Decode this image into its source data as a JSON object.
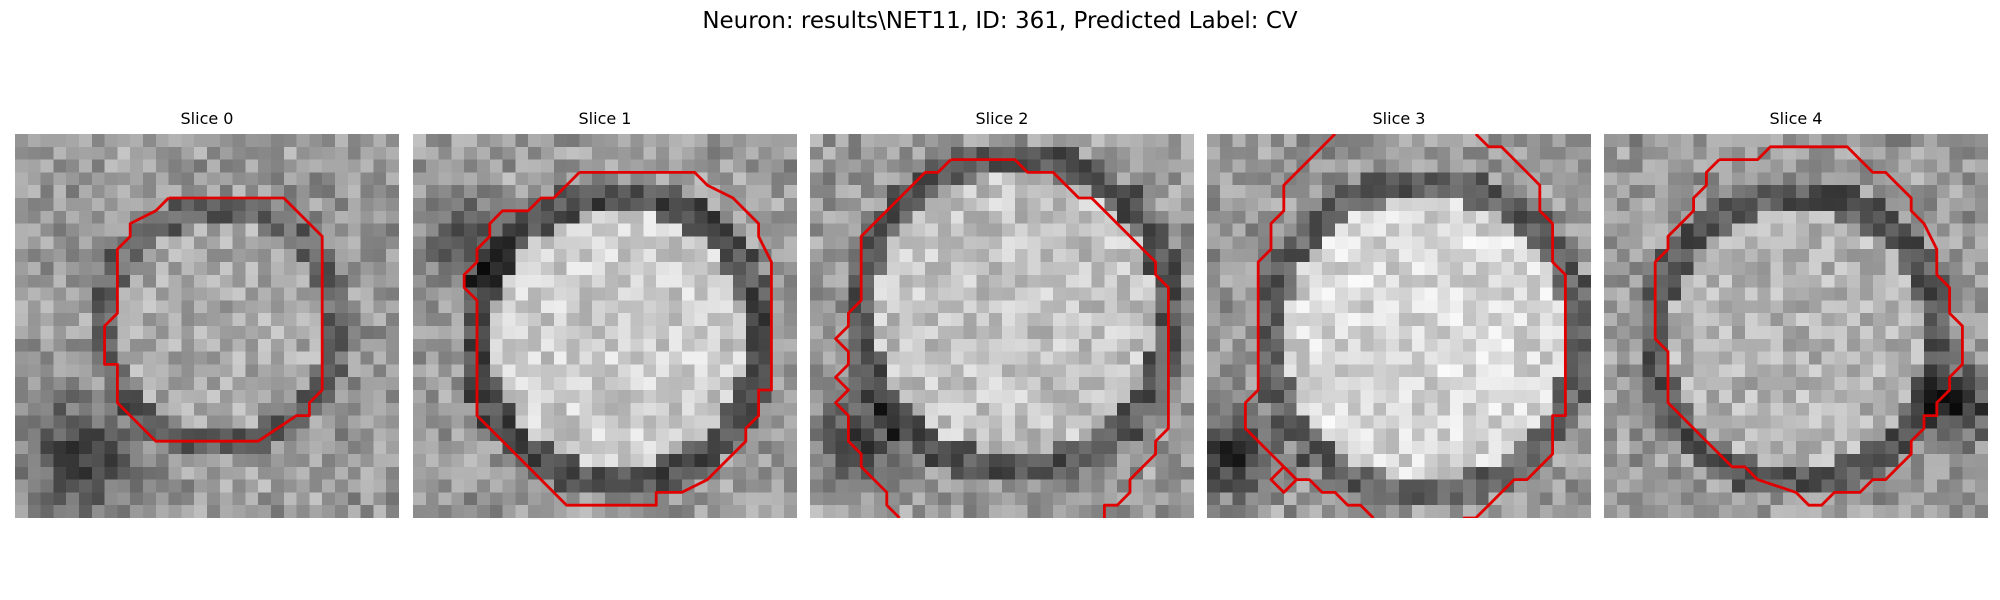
{
  "suptitle": "Neuron: results\\NET11, ID: 361, Predicted Label: CV",
  "grid_size": 30,
  "contour_color": "#e00000",
  "panels": [
    {
      "title": "Slice 0",
      "seed": 11,
      "cell": {
        "cx": 16,
        "cy": 15,
        "r": 9,
        "bright": 170,
        "ring_dark": 0.55
      },
      "dark_patch": {
        "cx": 5,
        "cy": 25,
        "r": 6,
        "strength": 110
      },
      "contour": [
        [
          12,
          5
        ],
        [
          21,
          5
        ],
        [
          24,
          8
        ],
        [
          24,
          20
        ],
        [
          23,
          21
        ],
        [
          23,
          22
        ],
        [
          22,
          22
        ],
        [
          19,
          24
        ],
        [
          11,
          24
        ],
        [
          8,
          21
        ],
        [
          8,
          18
        ],
        [
          7,
          18
        ],
        [
          7,
          15
        ],
        [
          8,
          14
        ],
        [
          8,
          9
        ],
        [
          9,
          8
        ],
        [
          9,
          7
        ],
        [
          11,
          6
        ],
        [
          12,
          5
        ]
      ],
      "extra_contours": []
    },
    {
      "title": "Slice 1",
      "seed": 23,
      "cell": {
        "cx": 16,
        "cy": 16,
        "r": 11,
        "bright": 205,
        "ring_dark": 0.8
      },
      "dark_patch": {
        "cx": 4,
        "cy": 8,
        "r": 5,
        "strength": 90
      },
      "contour": [
        [
          13,
          3
        ],
        [
          22,
          3
        ],
        [
          23,
          4
        ],
        [
          25,
          5
        ],
        [
          27,
          7
        ],
        [
          27,
          8
        ],
        [
          28,
          10
        ],
        [
          28,
          20
        ],
        [
          27,
          20
        ],
        [
          27,
          22
        ],
        [
          26,
          23
        ],
        [
          26,
          24
        ],
        [
          25,
          25
        ],
        [
          24,
          26
        ],
        [
          23,
          27
        ],
        [
          21,
          28
        ],
        [
          19,
          28
        ],
        [
          19,
          29
        ],
        [
          12,
          29
        ],
        [
          8,
          25
        ],
        [
          5,
          22
        ],
        [
          5,
          21
        ],
        [
          5,
          19
        ],
        [
          5,
          13
        ],
        [
          4,
          12
        ],
        [
          4,
          11
        ],
        [
          5,
          10
        ],
        [
          5,
          9
        ],
        [
          6,
          8
        ],
        [
          6,
          7
        ],
        [
          7,
          6
        ],
        [
          9,
          6
        ],
        [
          10,
          5
        ],
        [
          11,
          5
        ],
        [
          12,
          4
        ],
        [
          13,
          3
        ]
      ],
      "extra_contours": []
    },
    {
      "title": "Slice 2",
      "seed": 37,
      "cell": {
        "cx": 16,
        "cy": 14,
        "r": 12,
        "bright": 195,
        "ring_dark": 0.7
      },
      "dark_patch": {
        "cx": 4,
        "cy": 24,
        "r": 5,
        "strength": 100
      },
      "contour": [
        [
          11,
          2
        ],
        [
          16,
          2
        ],
        [
          17,
          3
        ],
        [
          19,
          3
        ],
        [
          20,
          4
        ],
        [
          21,
          5
        ],
        [
          22,
          5
        ],
        [
          23,
          6
        ],
        [
          24,
          7
        ],
        [
          25,
          8
        ],
        [
          26,
          9
        ],
        [
          27,
          10
        ],
        [
          27,
          11
        ],
        [
          28,
          12
        ],
        [
          28,
          23
        ],
        [
          27,
          24
        ],
        [
          27,
          25
        ],
        [
          26,
          26
        ],
        [
          25,
          27
        ],
        [
          25,
          28
        ],
        [
          24,
          29
        ],
        [
          23,
          29
        ],
        [
          23,
          30
        ]
      ],
      "extra_contours": [
        [
          [
            11,
            2
          ],
          [
            10,
            3
          ],
          [
            9,
            3
          ],
          [
            7,
            5
          ],
          [
            6,
            6
          ],
          [
            5,
            7
          ],
          [
            4,
            8
          ],
          [
            4,
            10
          ],
          [
            4,
            13
          ],
          [
            3,
            14
          ],
          [
            3,
            15
          ],
          [
            2,
            16
          ],
          [
            3,
            17
          ],
          [
            3,
            18
          ],
          [
            2,
            19
          ],
          [
            3,
            20
          ],
          [
            2,
            21
          ],
          [
            3,
            22
          ],
          [
            3,
            23
          ],
          [
            3,
            24
          ],
          [
            4,
            25
          ],
          [
            4,
            26
          ],
          [
            5,
            27
          ],
          [
            6,
            28
          ],
          [
            6,
            29
          ],
          [
            7,
            30
          ]
        ]
      ]
    },
    {
      "title": "Slice 3",
      "seed": 53,
      "cell": {
        "cx": 17,
        "cy": 16,
        "r": 12,
        "bright": 215,
        "ring_dark": 0.6
      },
      "dark_patch": {
        "cx": 2,
        "cy": 25,
        "r": 5,
        "strength": 120
      },
      "contour": [
        [
          21,
          0
        ],
        [
          22,
          1
        ],
        [
          23,
          1
        ],
        [
          25,
          3
        ],
        [
          26,
          4
        ],
        [
          26,
          5
        ],
        [
          26,
          6
        ],
        [
          27,
          7
        ],
        [
          27,
          10
        ],
        [
          28,
          11
        ],
        [
          28,
          22
        ],
        [
          27,
          22
        ],
        [
          27,
          25
        ],
        [
          26,
          26
        ],
        [
          25,
          27
        ],
        [
          24,
          27
        ],
        [
          23,
          28
        ],
        [
          22,
          29
        ],
        [
          21,
          30
        ],
        [
          20,
          30
        ]
      ],
      "extra_contours": [
        [
          [
            10,
            0
          ],
          [
            8,
            2
          ],
          [
            7,
            3
          ],
          [
            6,
            4
          ],
          [
            6,
            6
          ],
          [
            5,
            7
          ],
          [
            5,
            8
          ],
          [
            5,
            9
          ],
          [
            4,
            10
          ],
          [
            4,
            12
          ],
          [
            4,
            18
          ],
          [
            4,
            20
          ],
          [
            3,
            21
          ],
          [
            3,
            22
          ],
          [
            3,
            23
          ],
          [
            4,
            24
          ],
          [
            5,
            25
          ],
          [
            6,
            26
          ],
          [
            7,
            27
          ],
          [
            8,
            27
          ],
          [
            9,
            28
          ],
          [
            10,
            28
          ],
          [
            11,
            29
          ],
          [
            12,
            29
          ],
          [
            13,
            30
          ]
        ],
        [
          [
            6,
            26
          ],
          [
            7,
            27
          ],
          [
            6,
            28
          ],
          [
            5,
            27
          ],
          [
            6,
            26
          ]
        ]
      ]
    },
    {
      "title": "Slice 4",
      "seed": 71,
      "cell": {
        "cx": 15,
        "cy": 16,
        "r": 11,
        "bright": 180,
        "ring_dark": 0.7
      },
      "dark_patch": {
        "cx": 28,
        "cy": 21,
        "r": 4,
        "strength": 130
      },
      "contour": [
        [
          9,
          2
        ],
        [
          12,
          2
        ],
        [
          13,
          1
        ],
        [
          19,
          1
        ],
        [
          20,
          2
        ],
        [
          21,
          3
        ],
        [
          22,
          3
        ],
        [
          23,
          4
        ],
        [
          24,
          5
        ],
        [
          24,
          6
        ],
        [
          25,
          7
        ],
        [
          26,
          9
        ],
        [
          26,
          11
        ],
        [
          27,
          12
        ],
        [
          27,
          14
        ],
        [
          28,
          15
        ],
        [
          28,
          18
        ],
        [
          27,
          19
        ],
        [
          27,
          20
        ],
        [
          26,
          21
        ],
        [
          26,
          22
        ],
        [
          25,
          22
        ],
        [
          25,
          23
        ],
        [
          24,
          24
        ],
        [
          24,
          25
        ],
        [
          23,
          26
        ],
        [
          22,
          27
        ],
        [
          21,
          27
        ],
        [
          20,
          28
        ],
        [
          18,
          28
        ],
        [
          17,
          29
        ],
        [
          16,
          29
        ],
        [
          15,
          28
        ],
        [
          12,
          27
        ],
        [
          11,
          26
        ],
        [
          10,
          26
        ],
        [
          8,
          24
        ],
        [
          5,
          21
        ],
        [
          5,
          17
        ],
        [
          4,
          16
        ],
        [
          4,
          10
        ],
        [
          5,
          9
        ],
        [
          5,
          8
        ],
        [
          6,
          7
        ],
        [
          7,
          6
        ],
        [
          7,
          5
        ],
        [
          8,
          4
        ],
        [
          8,
          3
        ],
        [
          9,
          2
        ]
      ],
      "extra_contours": []
    }
  ]
}
